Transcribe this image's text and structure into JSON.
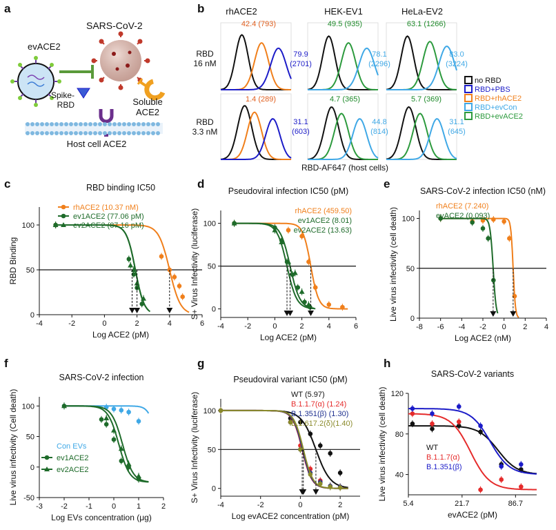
{
  "panel_labels": [
    "a",
    "b",
    "c",
    "d",
    "e",
    "f",
    "g",
    "h"
  ],
  "schematic": {
    "virus": "SARS-CoV-2",
    "ev": "evACE2",
    "spike": [
      "Spike-",
      "RBD"
    ],
    "soluble": [
      "Soluble",
      "ACE2"
    ],
    "host": "Host cell ACE2"
  },
  "flow": {
    "columns": [
      "rhACE2",
      "HEK-EV1",
      "HeLa-EV2"
    ],
    "row_labels": [
      [
        "RBD",
        "16 nM"
      ],
      [
        "RBD",
        "3.3 nM"
      ]
    ],
    "xlabel": "RBD-AF647 (host cells)",
    "row1": [
      {
        "top": "42.4 (793)",
        "right": [
          "79.9",
          "(2701)"
        ]
      },
      {
        "top": "49.5 (935)",
        "right": [
          "78.1",
          "(2296)"
        ]
      },
      {
        "top": "63.1 (1266)",
        "right": [
          "83.0",
          "(3224)"
        ]
      }
    ],
    "row2": [
      {
        "top": "1.4 (289)",
        "right": [
          "31.1",
          "(603)"
        ]
      },
      {
        "top": "4.7 (365)",
        "right": [
          "44.8",
          "(814)"
        ]
      },
      {
        "top": "5.7 (369)",
        "right": [
          "31.1",
          "(645)"
        ]
      }
    ],
    "legend": [
      "no RBD",
      "RBD+PBS",
      "RBD+rhACE2",
      "RBD+evCon",
      "RBD+evACE2"
    ]
  },
  "colors": {
    "orange": "#F07F1B",
    "dkgreen": "#1E6B2A",
    "green": "#2C9A3D",
    "blue": "#1C1CC8",
    "lightblue": "#3FA8E6",
    "black": "#111111",
    "red": "#E52B2B",
    "navy": "#1D2F8F",
    "olive": "#8A8A2A",
    "purple": "#7A2E8C"
  },
  "chart_data": [
    {
      "panel": "c",
      "type": "line",
      "title": "RBD binding IC50",
      "xlabel": "Log ACE2 (pM)",
      "ylabel": "RBD  Binding",
      "xlim": [
        -4,
        6
      ],
      "ylim": [
        0,
        120
      ],
      "xticks": [
        -4,
        -2,
        0,
        2,
        4,
        6
      ],
      "yticks": [
        0,
        50,
        100
      ],
      "threshold": 50,
      "series": [
        {
          "name": "rhACE2 (10.37 nM)",
          "color": "orange",
          "marker": "circle",
          "ic50": 4.0,
          "hill": 1.3,
          "x": [
            -3,
            3.5,
            4.0,
            4.3,
            4.6,
            4.8
          ],
          "y": [
            100,
            65,
            50,
            42,
            32,
            20
          ]
        },
        {
          "name": "ev1ACE2 (77.06 pM)",
          "color": "dkgreen",
          "marker": "circle",
          "ic50": 1.9,
          "hill": 1.6,
          "x": [
            -3,
            1.5,
            1.8,
            2.0,
            2.3
          ],
          "y": [
            100,
            62,
            45,
            30,
            12
          ]
        },
        {
          "name": "ev2ACE2 (87.16 pM)",
          "color": "dkgreen",
          "marker": "triangle",
          "ic50": 1.9,
          "hill": 1.6,
          "x": [
            -3,
            1.6,
            1.8,
            2.0,
            2.4
          ],
          "y": [
            100,
            55,
            50,
            35,
            18
          ]
        }
      ],
      "arrows_x": [
        1.7,
        2.0,
        4.0
      ]
    },
    {
      "panel": "d",
      "type": "line",
      "title": "Pseudoviral infection IC50 (pM)",
      "xlabel": "Log ACE2 (pM)",
      "ylabel": "S+ Virus Infectivity (luciferase)",
      "xlim": [
        -4,
        6
      ],
      "ylim": [
        -10,
        115
      ],
      "xticks": [
        -4,
        -2,
        0,
        2,
        4,
        6
      ],
      "yticks": [
        0,
        50,
        100
      ],
      "threshold": 50,
      "series": [
        {
          "name": "rhACE2 (459.50)",
          "color": "orange",
          "marker": "circle",
          "ic50": 2.66,
          "hill": 1.5,
          "x": [
            -3,
            1,
            2,
            2.5,
            3,
            4,
            5
          ],
          "y": [
            100,
            92,
            85,
            55,
            25,
            5,
            2
          ]
        },
        {
          "name": "ev1ACE2 (8.01)",
          "color": "dkgreen",
          "marker": "circle",
          "ic50": 0.9,
          "hill": 1.2,
          "x": [
            -3,
            0,
            0.5,
            0.9,
            1.3,
            1.7,
            2.2,
            2.6
          ],
          "y": [
            100,
            95,
            80,
            55,
            40,
            25,
            8,
            2
          ]
        },
        {
          "name": "ev2ACE2 (13.63)",
          "color": "dkgreen",
          "marker": "triangle",
          "ic50": 1.13,
          "hill": 1.2,
          "x": [
            -3,
            0,
            0.5,
            1,
            1.5,
            2,
            2.5
          ],
          "y": [
            100,
            92,
            78,
            55,
            42,
            20,
            5
          ]
        }
      ],
      "arrows_x": [
        0.9,
        1.13,
        2.66
      ]
    },
    {
      "panel": "e",
      "type": "line",
      "title": "SARS-CoV-2 infection IC50 (nM)",
      "xlabel": "Log ACE2 (nM)",
      "ylabel": "Live virus infectivity (cell death)",
      "xlim": [
        -8,
        4
      ],
      "ylim": [
        0,
        108
      ],
      "xticks": [
        -8,
        -6,
        -4,
        -2,
        0,
        2,
        4
      ],
      "yticks": [
        0,
        50,
        100
      ],
      "threshold": 50,
      "series": [
        {
          "name": "rhACE2 (7.240)",
          "color": "orange",
          "marker": "circle",
          "ic50": 0.86,
          "hill": 4,
          "x": [
            -6,
            -3,
            -2,
            -1,
            0,
            0.5,
            1
          ],
          "y": [
            100,
            97,
            98,
            99,
            97,
            80,
            22
          ]
        },
        {
          "name": "evACE2  (0.093)",
          "color": "dkgreen",
          "marker": "circle",
          "ic50": -1.03,
          "hill": 3,
          "x": [
            -6,
            -3,
            -2,
            -1.5,
            -1
          ],
          "y": [
            100,
            96,
            90,
            80,
            38
          ]
        }
      ],
      "arrows_x": [
        -1.03,
        0.86
      ]
    },
    {
      "panel": "f",
      "type": "line",
      "title": "SARS-CoV-2 infection",
      "xlabel": "Log EVs concentration  (μg)",
      "ylabel": "Live virus infectivity (Cell death)",
      "xlim": [
        -3,
        2
      ],
      "ylim": [
        -50,
        115
      ],
      "xticks": [
        -3,
        -2,
        -1,
        0,
        1,
        2
      ],
      "yticks": [
        -50,
        0,
        50,
        100
      ],
      "legend_header": "Con EVs",
      "series": [
        {
          "name": "Con EVs",
          "color": "lightblue",
          "marker": "circle",
          "ic50": 1.6,
          "hill": 3,
          "top": 100,
          "bottom": 40,
          "x": [
            -2,
            -0.3,
            0,
            0.3,
            0.6,
            1
          ],
          "y": [
            100,
            98,
            95,
            93,
            90,
            75
          ]
        },
        {
          "name": "ev1ACE2",
          "color": "dkgreen",
          "marker": "circle",
          "ic50": 0.2,
          "hill": 2,
          "top": 100,
          "bottom": -25,
          "x": [
            -2,
            -0.5,
            -0.3,
            0,
            0.3,
            0.6,
            1
          ],
          "y": [
            100,
            78,
            70,
            45,
            10,
            0,
            -20
          ]
        },
        {
          "name": "ev2ACE2",
          "color": "dkgreen",
          "marker": "triangle",
          "ic50": 0.35,
          "hill": 2,
          "top": 100,
          "bottom": -25,
          "x": [
            -2,
            -0.3,
            0,
            0.3,
            0.6,
            1
          ],
          "y": [
            100,
            80,
            60,
            30,
            5,
            -15
          ]
        }
      ]
    },
    {
      "panel": "g",
      "type": "line",
      "title": "Pseudoviral variant IC50 (pM)",
      "xlabel": "Log evACE2 concentration (pM)",
      "ylabel": "S+ Virus Infectivity (luciferase)",
      "xlim": [
        -4,
        3
      ],
      "ylim": [
        -10,
        115
      ],
      "xticks": [
        -4,
        -2,
        0,
        2
      ],
      "yticks": [
        0,
        50,
        100
      ],
      "threshold": 50,
      "series": [
        {
          "name": "WT (5.97)",
          "color": "black",
          "marker": "circle",
          "ic50": 0.78,
          "hill": 1.2,
          "x": [
            -4,
            -0.5,
            0,
            0.5,
            1,
            1.5,
            2
          ],
          "y": [
            100,
            90,
            85,
            70,
            55,
            45,
            20
          ]
        },
        {
          "name": "B.1.1.7(α) (1.24)",
          "color": "red",
          "marker": "circle",
          "ic50": 0.09,
          "hill": 1.8,
          "x": [
            -4,
            -0.5,
            0,
            0.5,
            1,
            1.5,
            2
          ],
          "y": [
            100,
            85,
            55,
            25,
            10,
            3,
            2
          ]
        },
        {
          "name": "B.1.351(β) (1.30)",
          "color": "navy",
          "marker": "circle",
          "ic50": 0.11,
          "hill": 1.8,
          "x": [
            -4,
            -0.5,
            0,
            0.5,
            1,
            1.5,
            2
          ],
          "y": [
            100,
            85,
            50,
            20,
            8,
            3,
            2
          ]
        },
        {
          "name": "B.1.617.2(δ)(1.40)",
          "color": "olive",
          "marker": "circle",
          "ic50": 0.15,
          "hill": 1.8,
          "x": [
            -4,
            -0.5,
            0,
            0.5,
            1,
            1.5,
            2
          ],
          "y": [
            100,
            85,
            50,
            18,
            6,
            2,
            1
          ]
        }
      ],
      "arrows_x": [
        0.09,
        0.15,
        0.78
      ]
    },
    {
      "panel": "h",
      "type": "line",
      "title": "SARS-CoV-2 variants",
      "xlabel": "evACE2 (pM)",
      "ylabel": "Live virus infectivity (cell death)",
      "xscale": "log",
      "xlim": [
        5.4,
        150
      ],
      "ylim": [
        20,
        120
      ],
      "xticks": [
        5.4,
        21.7,
        86.7
      ],
      "xticklabels": [
        "5.4",
        "21.7",
        "86.7"
      ],
      "yticks": [
        40,
        80,
        120
      ],
      "series": [
        {
          "name": "WT",
          "color": "black",
          "marker": "circle",
          "ic50": 55,
          "hill": 4,
          "top": 88,
          "bottom": 40,
          "x": [
            6,
            10,
            20,
            35,
            60,
            100
          ],
          "y": [
            90,
            85,
            88,
            82,
            50,
            45
          ]
        },
        {
          "name": "B.1.1.7(α)",
          "color": "red",
          "marker": "circle",
          "ic50": 27,
          "hill": 4,
          "top": 100,
          "bottom": 25,
          "x": [
            6,
            10,
            20,
            35,
            60,
            100
          ],
          "y": [
            100,
            90,
            92,
            25,
            35,
            28
          ]
        },
        {
          "name": "B.1.351(β)",
          "color": "blue",
          "marker": "circle",
          "ic50": 45,
          "hill": 4,
          "top": 105,
          "bottom": 40,
          "x": [
            6,
            10,
            20,
            35,
            60,
            100
          ],
          "y": [
            105,
            100,
            107,
            88,
            48,
            50
          ]
        }
      ]
    }
  ]
}
